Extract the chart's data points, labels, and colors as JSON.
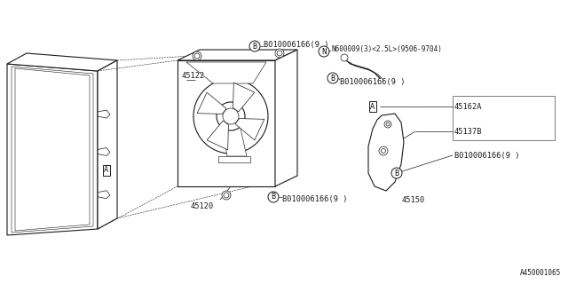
{
  "bg_color": "#ffffff",
  "line_color": "#1a1a1a",
  "fig_width": 6.4,
  "fig_height": 3.2,
  "dpi": 100,
  "footer_ref": "A450001065",
  "bolt_text": "B010006166(9 )",
  "n_bolt_text": "N600009(3)<2.5L>(9506-9704)",
  "label_45122": "45122",
  "label_45120": "45120",
  "label_45162A": "45162A",
  "label_45137B": "45137B",
  "label_45150": "45150"
}
